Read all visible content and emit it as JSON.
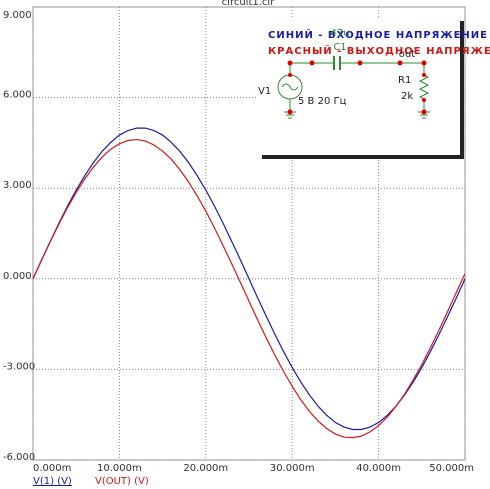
{
  "chart_data": {
    "type": "line",
    "title": "circuit1.cir",
    "x": [
      0,
      0.001,
      0.002,
      0.003,
      0.004,
      0.005,
      0.006,
      0.007,
      0.008,
      0.009,
      0.01,
      0.011,
      0.012,
      0.013,
      0.014,
      0.015,
      0.016,
      0.017,
      0.018,
      0.019,
      0.02,
      0.021,
      0.022,
      0.023,
      0.024,
      0.025,
      0.026,
      0.027,
      0.028,
      0.029,
      0.03,
      0.031,
      0.032,
      0.033,
      0.034,
      0.035,
      0.036,
      0.037,
      0.038,
      0.039,
      0.04,
      0.041,
      0.042,
      0.043,
      0.044,
      0.045,
      0.046,
      0.047,
      0.048,
      0.049,
      0.05
    ],
    "series": [
      {
        "name": "V(1) (V)",
        "color": "#1a1aa8",
        "values": [
          0,
          0.63,
          1.24,
          1.84,
          2.41,
          2.94,
          3.42,
          3.85,
          4.22,
          4.52,
          4.76,
          4.91,
          4.99,
          4.99,
          4.91,
          4.76,
          4.52,
          4.22,
          3.85,
          3.42,
          2.94,
          2.41,
          1.84,
          1.24,
          0.63,
          0,
          -0.63,
          -1.24,
          -1.84,
          -2.41,
          -2.94,
          -3.42,
          -3.85,
          -4.22,
          -4.52,
          -4.76,
          -4.91,
          -4.99,
          -4.99,
          -4.91,
          -4.76,
          -4.52,
          -4.22,
          -3.85,
          -3.42,
          -2.94,
          -2.41,
          -1.84,
          -1.24,
          -0.63,
          0
        ]
      },
      {
        "name": "V(OUT) (V)",
        "color": "#d01818",
        "values": [
          0,
          0.62,
          1.23,
          1.81,
          2.36,
          2.86,
          3.31,
          3.7,
          4.03,
          4.29,
          4.47,
          4.58,
          4.61,
          4.56,
          4.43,
          4.23,
          3.96,
          3.61,
          3.21,
          2.75,
          2.24,
          1.69,
          1.1,
          0.5,
          -0.12,
          -0.74,
          -1.36,
          -1.96,
          -2.53,
          -3.07,
          -3.56,
          -4.01,
          -4.39,
          -4.71,
          -4.96,
          -5.14,
          -5.24,
          -5.26,
          -5.21,
          -5.07,
          -4.86,
          -4.58,
          -4.23,
          -3.82,
          -3.35,
          -2.84,
          -2.28,
          -1.69,
          -1.08,
          -0.45,
          0.17
        ]
      }
    ],
    "xlim": [
      0,
      0.05
    ],
    "xticks": [
      {
        "value": 0,
        "label": "0.000m"
      },
      {
        "value": 0.01,
        "label": "10.000m"
      },
      {
        "value": 0.02,
        "label": "20.000m"
      },
      {
        "value": 0.03,
        "label": "30.000m"
      },
      {
        "value": 0.04,
        "label": "40.000m"
      },
      {
        "value": 0.05,
        "label": "50.000m"
      }
    ],
    "ylim": [
      -6,
      9
    ],
    "yticks": [
      {
        "value": -6,
        "label": "-6.000"
      },
      {
        "value": -3,
        "label": "-3.000"
      },
      {
        "value": 0,
        "label": "0.000"
      },
      {
        "value": 3,
        "label": "3.000"
      },
      {
        "value": 6,
        "label": "6.000"
      },
      {
        "value": 9,
        "label": "9.000"
      }
    ],
    "grid": true,
    "annotations": [
      "СИНИЙ - ВХОДНОЕ НАПРЯЖЕНИЕ",
      "КРАСНЫЙ - ВЫХОДНОЕ НАПРЯЖЕНИЕ",
      "47u",
      "C1",
      "out",
      "V1",
      "R1",
      "2k",
      "5 В 20 Гц"
    ]
  }
}
